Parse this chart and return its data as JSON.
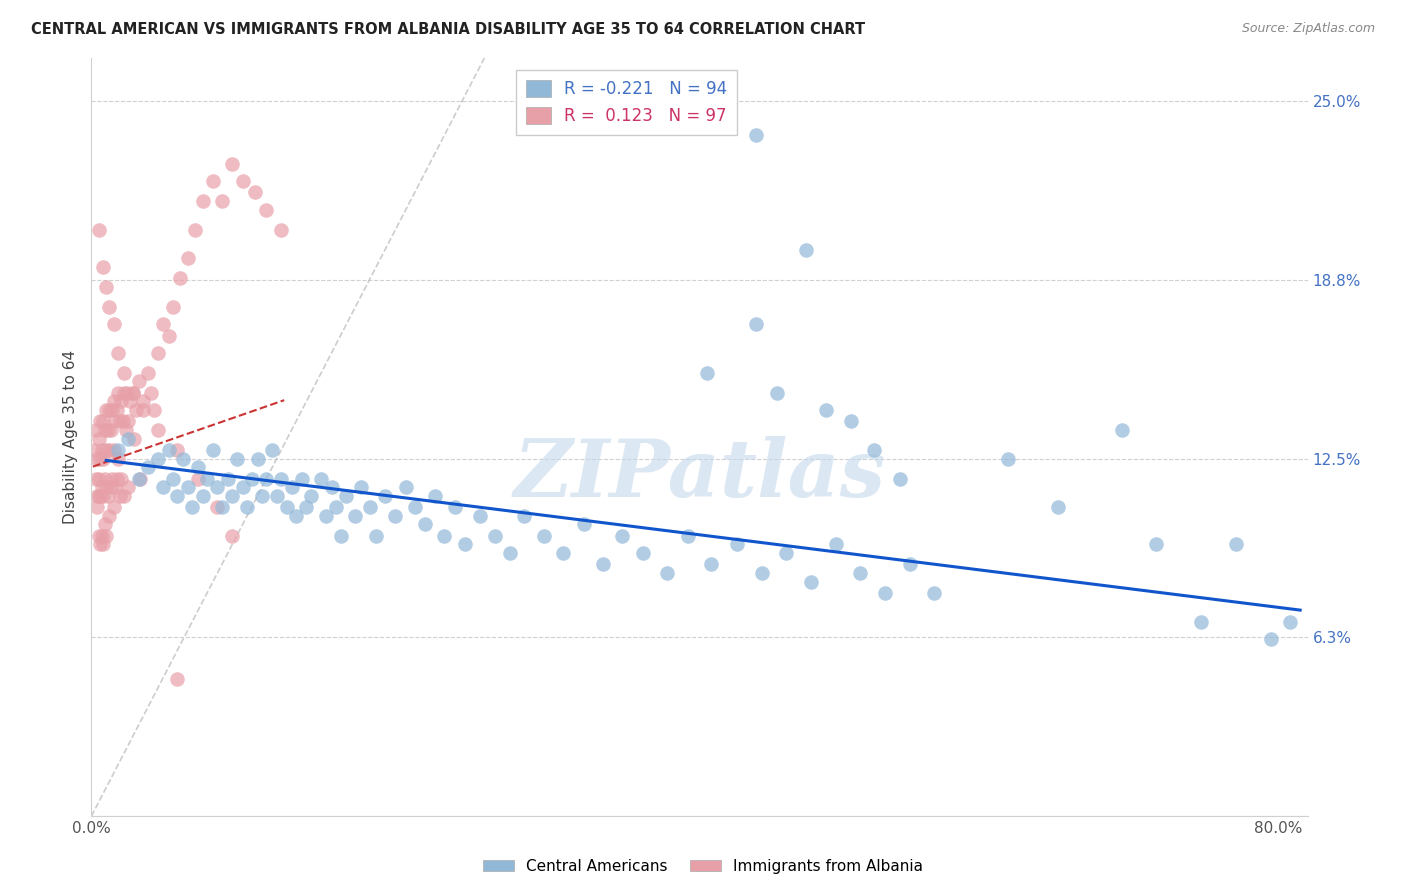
{
  "title": "CENTRAL AMERICAN VS IMMIGRANTS FROM ALBANIA DISABILITY AGE 35 TO 64 CORRELATION CHART",
  "source": "Source: ZipAtlas.com",
  "ylabel": "Disability Age 35 to 64",
  "xlim": [
    0.0,
    0.82
  ],
  "ylim": [
    0.0,
    0.265
  ],
  "y_ticks": [
    0.0,
    0.0625,
    0.125,
    0.1875,
    0.25
  ],
  "y_tick_labels_right": [
    "",
    "6.3%",
    "12.5%",
    "18.8%",
    "25.0%"
  ],
  "x_tick_positions": [
    0.0,
    0.1,
    0.2,
    0.3,
    0.4,
    0.5,
    0.6,
    0.7,
    0.8
  ],
  "x_tick_labels": [
    "0.0%",
    "",
    "",
    "",
    "",
    "",
    "",
    "",
    "80.0%"
  ],
  "legend_r1": "R = -0.221",
  "legend_n1": "N = 94",
  "legend_r2": "R =  0.123",
  "legend_n2": "N = 97",
  "blue_color": "#92b8d8",
  "pink_color": "#e8a0a8",
  "trend_blue_color": "#1155cc",
  "trend_pink_color": "#cc3333",
  "diag_color": "#c0c0c0",
  "grid_color": "#d0d0d0",
  "watermark": "ZIPatlas",
  "watermark_color": "#c5d8ed",
  "legend_blue_text": "#4472c4",
  "legend_pink_text": "#cc3366",
  "title_color": "#222222",
  "source_color": "#888888",
  "ylabel_color": "#444444",
  "blue_x": [
    0.018,
    0.025,
    0.032,
    0.038,
    0.045,
    0.048,
    0.052,
    0.055,
    0.058,
    0.062,
    0.065,
    0.068,
    0.072,
    0.075,
    0.078,
    0.082,
    0.085,
    0.088,
    0.092,
    0.095,
    0.098,
    0.102,
    0.105,
    0.108,
    0.112,
    0.115,
    0.118,
    0.122,
    0.125,
    0.128,
    0.132,
    0.135,
    0.138,
    0.142,
    0.145,
    0.148,
    0.155,
    0.158,
    0.162,
    0.165,
    0.168,
    0.172,
    0.178,
    0.182,
    0.188,
    0.192,
    0.198,
    0.205,
    0.212,
    0.218,
    0.225,
    0.232,
    0.238,
    0.245,
    0.252,
    0.262,
    0.272,
    0.282,
    0.292,
    0.305,
    0.318,
    0.332,
    0.345,
    0.358,
    0.372,
    0.388,
    0.402,
    0.418,
    0.435,
    0.452,
    0.468,
    0.485,
    0.502,
    0.518,
    0.535,
    0.552,
    0.568,
    0.415,
    0.448,
    0.462,
    0.495,
    0.512,
    0.528,
    0.545,
    0.618,
    0.652,
    0.695,
    0.718,
    0.748,
    0.772,
    0.795,
    0.808,
    0.448,
    0.482
  ],
  "blue_y": [
    0.128,
    0.132,
    0.118,
    0.122,
    0.125,
    0.115,
    0.128,
    0.118,
    0.112,
    0.125,
    0.115,
    0.108,
    0.122,
    0.112,
    0.118,
    0.128,
    0.115,
    0.108,
    0.118,
    0.112,
    0.125,
    0.115,
    0.108,
    0.118,
    0.125,
    0.112,
    0.118,
    0.128,
    0.112,
    0.118,
    0.108,
    0.115,
    0.105,
    0.118,
    0.108,
    0.112,
    0.118,
    0.105,
    0.115,
    0.108,
    0.098,
    0.112,
    0.105,
    0.115,
    0.108,
    0.098,
    0.112,
    0.105,
    0.115,
    0.108,
    0.102,
    0.112,
    0.098,
    0.108,
    0.095,
    0.105,
    0.098,
    0.092,
    0.105,
    0.098,
    0.092,
    0.102,
    0.088,
    0.098,
    0.092,
    0.085,
    0.098,
    0.088,
    0.095,
    0.085,
    0.092,
    0.082,
    0.095,
    0.085,
    0.078,
    0.088,
    0.078,
    0.155,
    0.172,
    0.148,
    0.142,
    0.138,
    0.128,
    0.118,
    0.125,
    0.108,
    0.135,
    0.095,
    0.068,
    0.095,
    0.062,
    0.068,
    0.238,
    0.198
  ],
  "pink_x": [
    0.002,
    0.003,
    0.003,
    0.004,
    0.004,
    0.004,
    0.005,
    0.005,
    0.005,
    0.005,
    0.006,
    0.006,
    0.006,
    0.006,
    0.007,
    0.007,
    0.007,
    0.008,
    0.008,
    0.008,
    0.008,
    0.009,
    0.009,
    0.009,
    0.01,
    0.01,
    0.01,
    0.01,
    0.011,
    0.011,
    0.012,
    0.012,
    0.012,
    0.013,
    0.013,
    0.014,
    0.014,
    0.015,
    0.015,
    0.015,
    0.016,
    0.016,
    0.017,
    0.017,
    0.018,
    0.018,
    0.019,
    0.019,
    0.02,
    0.02,
    0.021,
    0.022,
    0.022,
    0.023,
    0.024,
    0.025,
    0.025,
    0.026,
    0.028,
    0.029,
    0.03,
    0.032,
    0.033,
    0.035,
    0.038,
    0.04,
    0.042,
    0.045,
    0.048,
    0.052,
    0.055,
    0.06,
    0.065,
    0.07,
    0.075,
    0.082,
    0.088,
    0.095,
    0.102,
    0.11,
    0.118,
    0.128,
    0.005,
    0.008,
    0.01,
    0.012,
    0.015,
    0.018,
    0.022,
    0.028,
    0.035,
    0.045,
    0.058,
    0.072,
    0.085,
    0.095,
    0.058
  ],
  "pink_y": [
    0.128,
    0.118,
    0.135,
    0.112,
    0.125,
    0.108,
    0.132,
    0.118,
    0.112,
    0.098,
    0.138,
    0.125,
    0.112,
    0.095,
    0.128,
    0.115,
    0.098,
    0.138,
    0.125,
    0.112,
    0.095,
    0.135,
    0.118,
    0.102,
    0.142,
    0.128,
    0.115,
    0.098,
    0.135,
    0.112,
    0.142,
    0.128,
    0.105,
    0.135,
    0.115,
    0.142,
    0.118,
    0.145,
    0.128,
    0.108,
    0.138,
    0.115,
    0.142,
    0.118,
    0.148,
    0.125,
    0.138,
    0.112,
    0.145,
    0.118,
    0.138,
    0.148,
    0.112,
    0.135,
    0.148,
    0.138,
    0.115,
    0.145,
    0.148,
    0.132,
    0.142,
    0.152,
    0.118,
    0.145,
    0.155,
    0.148,
    0.142,
    0.162,
    0.172,
    0.168,
    0.178,
    0.188,
    0.195,
    0.205,
    0.215,
    0.222,
    0.215,
    0.228,
    0.222,
    0.218,
    0.212,
    0.205,
    0.205,
    0.192,
    0.185,
    0.178,
    0.172,
    0.162,
    0.155,
    0.148,
    0.142,
    0.135,
    0.128,
    0.118,
    0.108,
    0.098,
    0.048
  ]
}
